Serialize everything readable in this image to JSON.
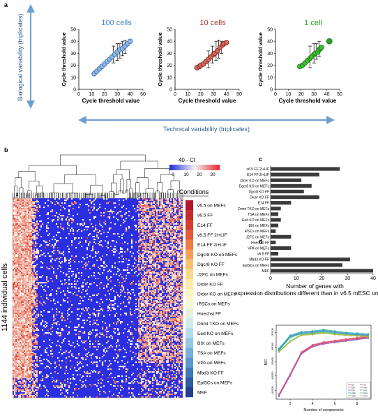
{
  "panel_labels": {
    "a": "a",
    "b": "b",
    "c": "c",
    "d": "d"
  },
  "panel_a": {
    "y_arrow_label": "Biological variability (triplicates)",
    "x_arrow_label": "Technical variability (triplicates)",
    "colors": {
      "arrow": "#6f9fd0",
      "c100": "#4a90d6",
      "c10": "#b0372c",
      "c1": "#27a11f"
    },
    "subplots": [
      {
        "title": "100 cells",
        "title_color": "#3f86d1",
        "fill": "#8fb7e6",
        "stroke": "#3b6ea8",
        "x_label": "Cycle threshold value",
        "y_label": "Cycle threshold value",
        "yticks": [
          "0",
          "10",
          "20",
          "30",
          "40",
          "50"
        ],
        "xticks": [
          "0",
          "10",
          "20",
          "30",
          "40",
          "50"
        ],
        "points": [
          [
            12,
            13
          ],
          [
            14,
            15
          ],
          [
            16,
            17
          ],
          [
            18,
            19
          ],
          [
            20,
            21
          ],
          [
            22,
            23
          ],
          [
            24,
            25
          ],
          [
            26,
            27
          ],
          [
            28,
            29
          ],
          [
            30,
            31
          ],
          [
            32,
            33
          ],
          [
            34,
            34
          ],
          [
            36,
            36
          ],
          [
            38,
            38
          ],
          [
            40,
            40
          ]
        ],
        "errbars": [
          [
            27,
            22,
            36
          ],
          [
            30,
            24,
            38
          ],
          [
            32,
            26,
            38
          ],
          [
            34,
            28,
            40
          ],
          [
            36,
            30,
            41
          ]
        ]
      },
      {
        "title": "10 cells",
        "title_color": "#b0372c",
        "fill": "#d46a5c",
        "stroke": "#7b1f17",
        "x_label": "Cycle threshold value",
        "y_label": "Cycle threshold value",
        "yticks": [
          "0",
          "10",
          "20",
          "30",
          "40",
          "50"
        ],
        "xticks": [
          "0",
          "10",
          "20",
          "30",
          "40",
          "50"
        ],
        "points": [
          [
            17,
            18
          ],
          [
            19,
            19
          ],
          [
            20,
            20
          ],
          [
            22,
            21
          ],
          [
            24,
            23
          ],
          [
            26,
            25
          ],
          [
            28,
            27
          ],
          [
            30,
            29
          ],
          [
            31,
            30
          ],
          [
            33,
            32
          ],
          [
            35,
            35
          ],
          [
            37,
            37
          ],
          [
            38,
            38
          ],
          [
            40,
            39
          ]
        ],
        "errbars": [
          [
            26,
            18,
            32
          ],
          [
            29,
            22,
            36
          ],
          [
            32,
            24,
            40
          ],
          [
            34,
            26,
            41
          ],
          [
            36,
            30,
            40
          ]
        ]
      },
      {
        "title": "1 cell",
        "title_color": "#27a11f",
        "fill": "#3fbf35",
        "stroke": "#1c6f16",
        "x_label": "Cycle threshold value",
        "y_label": "Cycle threshold value",
        "yticks": [
          "0",
          "10",
          "20",
          "30",
          "40",
          "50"
        ],
        "xticks": [
          "0",
          "10",
          "20",
          "30",
          "40",
          "50"
        ],
        "points": [
          [
            19,
            19
          ],
          [
            21,
            20
          ],
          [
            23,
            22
          ],
          [
            25,
            24
          ],
          [
            27,
            26
          ],
          [
            28,
            27
          ],
          [
            30,
            29
          ],
          [
            31,
            30
          ],
          [
            33,
            31
          ],
          [
            34,
            33
          ],
          [
            35,
            34
          ],
          [
            36,
            35
          ],
          [
            42,
            40
          ]
        ],
        "errbars": [
          [
            27,
            18,
            36
          ],
          [
            30,
            22,
            38
          ],
          [
            32,
            25,
            38
          ],
          [
            34,
            27,
            40
          ]
        ]
      }
    ]
  },
  "panel_b": {
    "legend_title": "40 - Ct",
    "legend_ticks": [
      "0",
      "10",
      "20",
      "30"
    ],
    "conditions_title": "Conditions",
    "y_label": "1144 individual cells",
    "conditions": [
      {
        "label": "v6.5 on MEFs",
        "color": "#b2182b"
      },
      {
        "label": "v6.5 FF",
        "color": "#c62a2f"
      },
      {
        "label": "E14 FF",
        "color": "#d73c32"
      },
      {
        "label": "v6.5 FF 2i+LIF",
        "color": "#e25a3a"
      },
      {
        "label": "E14 FF 2i+LIF",
        "color": "#ee7a45"
      },
      {
        "label": "Dgcr8 KO on MEFs",
        "color": "#f4a05a"
      },
      {
        "label": "Dgcr8 KO FF",
        "color": "#f8c070"
      },
      {
        "label": "J2FC on MEFs",
        "color": "#fbd98c"
      },
      {
        "label": "Dicer KO FF",
        "color": "#fde9a8"
      },
      {
        "label": "Dicer KO on MEFs",
        "color": "#fff6c4"
      },
      {
        "label": "iPSCs on MEFs",
        "color": "#f4f9d4"
      },
      {
        "label": "Hoechst FF",
        "color": "#e4f3e0"
      },
      {
        "label": "Dnmt TKO on MEFs",
        "color": "#d0ebee"
      },
      {
        "label": "Eed KO on MEFs",
        "color": "#b5dcec"
      },
      {
        "label": "BIX on MEFs",
        "color": "#97c7e3"
      },
      {
        "label": "TSA on MEFs",
        "color": "#78b0d8"
      },
      {
        "label": "VPA on MEFs",
        "color": "#5b97cb"
      },
      {
        "label": "Mbd3 KO FF",
        "color": "#4278b8"
      },
      {
        "label": "EpiSCs on MEFs",
        "color": "#2f5ba3"
      },
      {
        "label": "MEF",
        "color": "#253f8c"
      }
    ]
  },
  "chart_data": [
    {
      "type": "bar",
      "panel": "c",
      "orientation": "horizontal",
      "categories": [
        "v6.5 FF 2i+LIF",
        "E14 FF 2i+LIF",
        "Dicer KO on MEFs",
        "Dgcr8 KO on MEFs",
        "Dgcr8 KO FF",
        "Dicer KO FF",
        "E14 FF",
        "Dnmt TKO on MEFs",
        "TSA on MEFs",
        "Eed KO on MEFs",
        "BIX on MEFs",
        "iPSCs on MEFs",
        "J2FC on MEFs",
        "Hoechst FF",
        "VPA on MEFs",
        "v6.5 FF",
        "Mbd3 KO FF",
        "EpiSCs on MEFs",
        "MEF"
      ],
      "values": [
        27,
        19,
        12,
        16,
        13,
        19,
        8,
        4,
        3,
        4,
        3,
        2,
        8,
        2,
        8,
        3,
        31,
        28,
        40
      ],
      "xlabel": "Number of genes with expression distributions different than in v6.5 mESC on MEFs",
      "xticks": [
        "0",
        "10",
        "20",
        "30",
        "40"
      ],
      "xlim": [
        0,
        40
      ]
    },
    {
      "type": "line",
      "panel": "d",
      "xlabel": "Number of components",
      "ylabel": "BIC",
      "x": [
        1,
        2,
        3,
        4,
        5,
        6,
        7,
        8,
        9
      ],
      "xticks": [
        "2",
        "4",
        "6",
        "8"
      ],
      "yticks": [
        "-37000",
        "-38000",
        "-39000",
        "-40000",
        "-41000"
      ],
      "ylim": [
        -41600,
        -36500
      ],
      "legend": {
        "placement": "bottom-right",
        "entries": [
          "EII",
          "VII",
          "EEI",
          "VEI",
          "EVI",
          "VVI",
          "EEE",
          "EEV",
          "VEV",
          "VVV"
        ]
      },
      "series": [
        {
          "name": "EII",
          "color": "#d6404e",
          "values": [
            -41300,
            -39900,
            -38400,
            -37900,
            -37700,
            -37600,
            -37500,
            -37400,
            -37300
          ]
        },
        {
          "name": "VII",
          "color": "#c43a8c",
          "values": [
            -41350,
            -39950,
            -38450,
            -37950,
            -37750,
            -37650,
            -37550,
            -37450,
            -37350
          ]
        },
        {
          "name": "EEI",
          "color": "#e0718a",
          "values": [
            -41250,
            -39850,
            -38350,
            -37850,
            -37650,
            -37550,
            -37450,
            -37350,
            -37250
          ]
        },
        {
          "name": "VEI",
          "color": "#9b5fc0",
          "values": [
            -41400,
            -40000,
            -38500,
            -38000,
            -37800,
            -37700,
            -37600,
            -37500,
            -37400
          ]
        },
        {
          "name": "EVI",
          "color": "#5b6fd8",
          "values": [
            -38200,
            -37300,
            -37050,
            -37000,
            -36900,
            -37000,
            -37100,
            -37150,
            -37200
          ]
        },
        {
          "name": "VVI",
          "color": "#2f9fd6",
          "values": [
            -38150,
            -37250,
            -37000,
            -36950,
            -36850,
            -36950,
            -37050,
            -37100,
            -37150
          ]
        },
        {
          "name": "EEE",
          "color": "#2bb3b1",
          "values": [
            -38100,
            -37200,
            -36950,
            -36900,
            -36800,
            -36900,
            -37000,
            -37050,
            -37100
          ]
        },
        {
          "name": "EEV",
          "color": "#3ec07a",
          "values": [
            -38250,
            -37350,
            -37100,
            -37050,
            -36950,
            -37050,
            -37150,
            -37200,
            -37250
          ]
        },
        {
          "name": "VEV",
          "color": "#77c043",
          "values": [
            -38300,
            -37600,
            -37150,
            -37100,
            -37000,
            -37100,
            -37150,
            -37200,
            -37250
          ]
        },
        {
          "name": "VVV",
          "color": "#a7b83a",
          "values": [
            -38350,
            -37650,
            -37200,
            -37150,
            -37050,
            -37150,
            -37200,
            -37250,
            -37300
          ]
        }
      ]
    }
  ]
}
